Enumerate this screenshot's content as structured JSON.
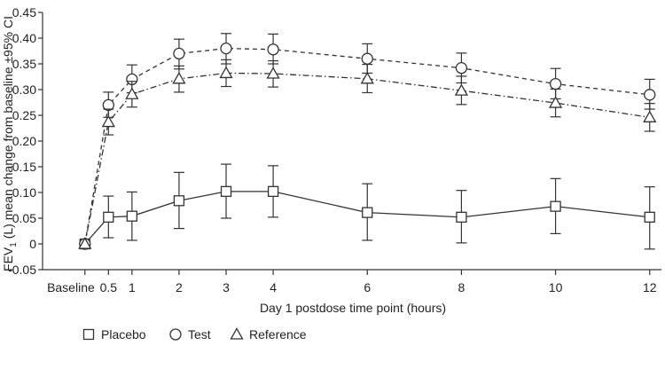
{
  "chart_data": {
    "type": "line",
    "title": "",
    "xlabel": "Day 1 postdose time point (hours)",
    "ylabel": "FEV1 (L) mean change from baseline ±95% CI",
    "ylabel_parts": {
      "pre": "FEV",
      "sub": "1",
      "post": " (L) mean change from baseline ±95% CI"
    },
    "ylim": [
      -0.05,
      0.45
    ],
    "yticks": [
      -0.05,
      0,
      0.05,
      0.1,
      0.15,
      0.2,
      0.25,
      0.3,
      0.35,
      0.4,
      0.45
    ],
    "ytick_labels": [
      "-0.05",
      "0",
      "0.05",
      "0.10",
      "0.15",
      "0.20",
      "0.25",
      "0.30",
      "0.35",
      "0.40",
      "0.45"
    ],
    "xlim": [
      -0.9,
      12.25
    ],
    "xticks": [
      0,
      0.5,
      1,
      2,
      3,
      4,
      6,
      8,
      10,
      12
    ],
    "xtick_labels": [
      "Baseline",
      "0.5",
      "1",
      "2",
      "3",
      "4",
      "6",
      "8",
      "10",
      "12"
    ],
    "x": [
      0,
      0.5,
      1,
      2,
      3,
      4,
      6,
      8,
      10,
      12
    ],
    "series": [
      {
        "name": "Placebo",
        "marker": "square",
        "line": "solid",
        "values": [
          0,
          0.052,
          0.054,
          0.084,
          0.102,
          0.102,
          0.061,
          0.052,
          0.073,
          0.052
        ],
        "ci_low": [
          0,
          0.012,
          0.007,
          0.03,
          0.05,
          0.052,
          0.007,
          0.002,
          0.02,
          -0.01
        ],
        "ci_high": [
          0,
          0.093,
          0.101,
          0.139,
          0.155,
          0.152,
          0.117,
          0.104,
          0.127,
          0.111
        ]
      },
      {
        "name": "Test",
        "marker": "circle",
        "line": "dashed",
        "values": [
          0,
          0.27,
          0.32,
          0.37,
          0.38,
          0.378,
          0.36,
          0.342,
          0.311,
          0.29
        ],
        "ci_low": [
          0,
          0.246,
          0.294,
          0.34,
          0.35,
          0.35,
          0.332,
          0.313,
          0.282,
          0.262
        ],
        "ci_high": [
          0,
          0.295,
          0.348,
          0.398,
          0.409,
          0.408,
          0.389,
          0.371,
          0.341,
          0.32
        ]
      },
      {
        "name": "Reference",
        "marker": "triangle",
        "line": "dashdot",
        "values": [
          0,
          0.237,
          0.291,
          0.321,
          0.332,
          0.331,
          0.321,
          0.298,
          0.274,
          0.246
        ],
        "ci_low": [
          0,
          0.212,
          0.266,
          0.295,
          0.306,
          0.305,
          0.294,
          0.271,
          0.247,
          0.219
        ],
        "ci_high": [
          0,
          0.262,
          0.316,
          0.346,
          0.358,
          0.356,
          0.349,
          0.326,
          0.301,
          0.273
        ]
      }
    ],
    "legend": {
      "position": "bottom-left",
      "entries": [
        "Placebo",
        "Test",
        "Reference"
      ]
    },
    "grid": false
  }
}
